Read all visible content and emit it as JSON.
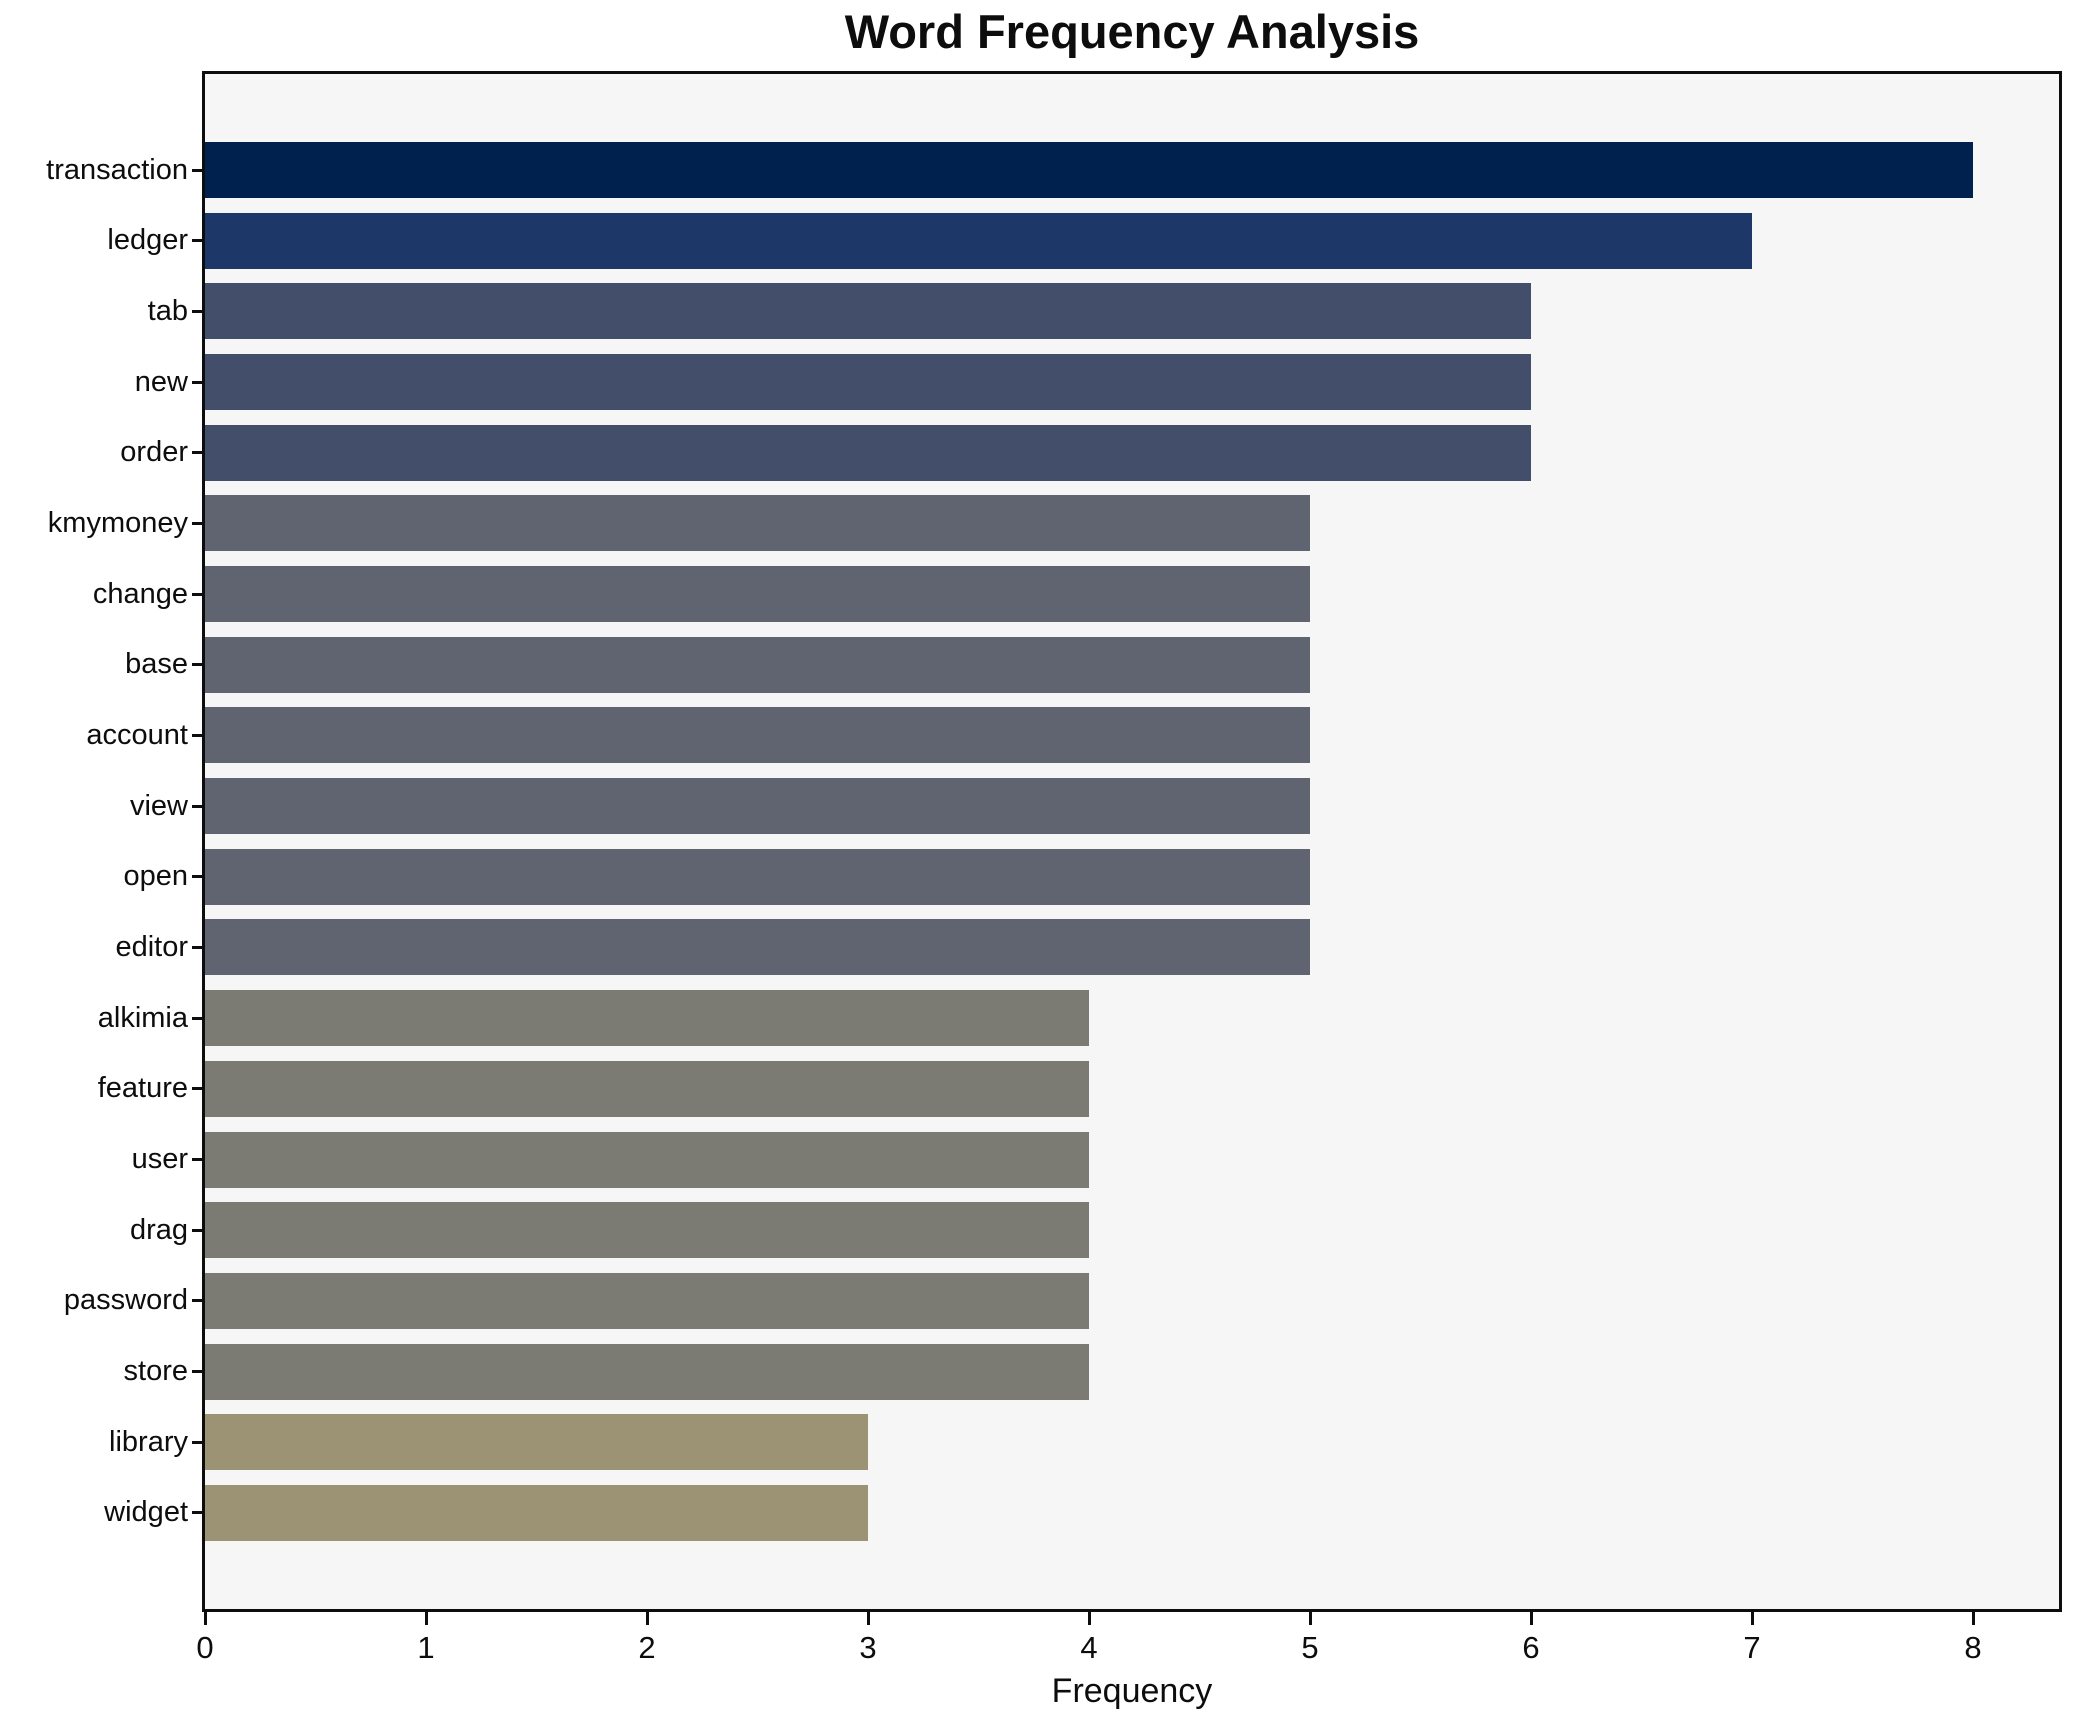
{
  "title": "Word Frequency Analysis",
  "chart_data": {
    "type": "bar",
    "orientation": "horizontal",
    "title": "Word Frequency Analysis",
    "xlabel": "Frequency",
    "ylabel": "",
    "categories": [
      "transaction",
      "ledger",
      "tab",
      "new",
      "order",
      "kmymoney",
      "change",
      "base",
      "account",
      "view",
      "open",
      "editor",
      "alkimia",
      "feature",
      "user",
      "drag",
      "password",
      "store",
      "library",
      "widget"
    ],
    "values": [
      8,
      7,
      6,
      6,
      6,
      5,
      5,
      5,
      5,
      5,
      5,
      5,
      4,
      4,
      4,
      4,
      4,
      4,
      3,
      3
    ],
    "bar_colors": [
      "#00214d",
      "#1c3768",
      "#434e6b",
      "#434e6b",
      "#434e6b",
      "#5f6470",
      "#5f6470",
      "#5f6470",
      "#5f6470",
      "#5f6470",
      "#5f6470",
      "#5f6470",
      "#7b7a73",
      "#7b7a73",
      "#7b7a73",
      "#7b7a73",
      "#7b7a73",
      "#7b7a73",
      "#9b9374",
      "#9b9374"
    ],
    "value_color_map": {
      "8": "#00214d",
      "7": "#1c3768",
      "6": "#434e6b",
      "5": "#5f6470",
      "4": "#7b7a73",
      "3": "#9b9374"
    },
    "xticks": [
      0,
      1,
      2,
      3,
      4,
      5,
      6,
      7,
      8
    ],
    "xlim": [
      0,
      8.4
    ],
    "grid": false,
    "legend": null,
    "plot_background": "#f6f6f7",
    "figure_background": "#ffffff",
    "spine_color": "#0d0d0d"
  }
}
